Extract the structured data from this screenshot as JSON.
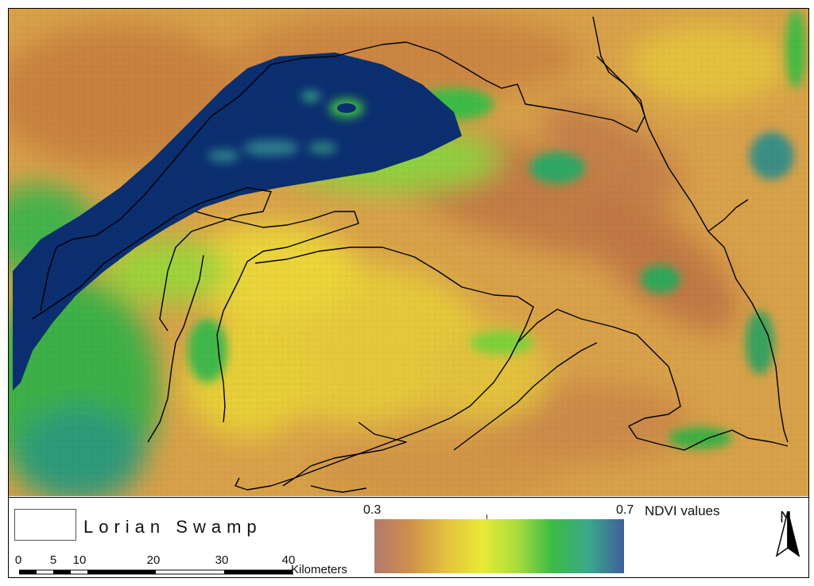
{
  "legend": {
    "swamp_label": "Lorian Swamp"
  },
  "scale_bar": {
    "ticks": [
      "0",
      "5",
      "10",
      "20",
      "30",
      "40"
    ],
    "unit": "Kilometers"
  },
  "color_ramp": {
    "min_label": "0.3",
    "max_label": "0.7",
    "title": "NDVI values",
    "colors": [
      "#b07a6c",
      "#cf8f4a",
      "#e5c23f",
      "#e9ea36",
      "#a9dd3c",
      "#3cbc45",
      "#3aa88a",
      "#3e5f9a"
    ]
  },
  "north_arrow": {
    "letter": "N"
  },
  "colors": {
    "water": "#0b2f70",
    "outline": "#000000"
  }
}
